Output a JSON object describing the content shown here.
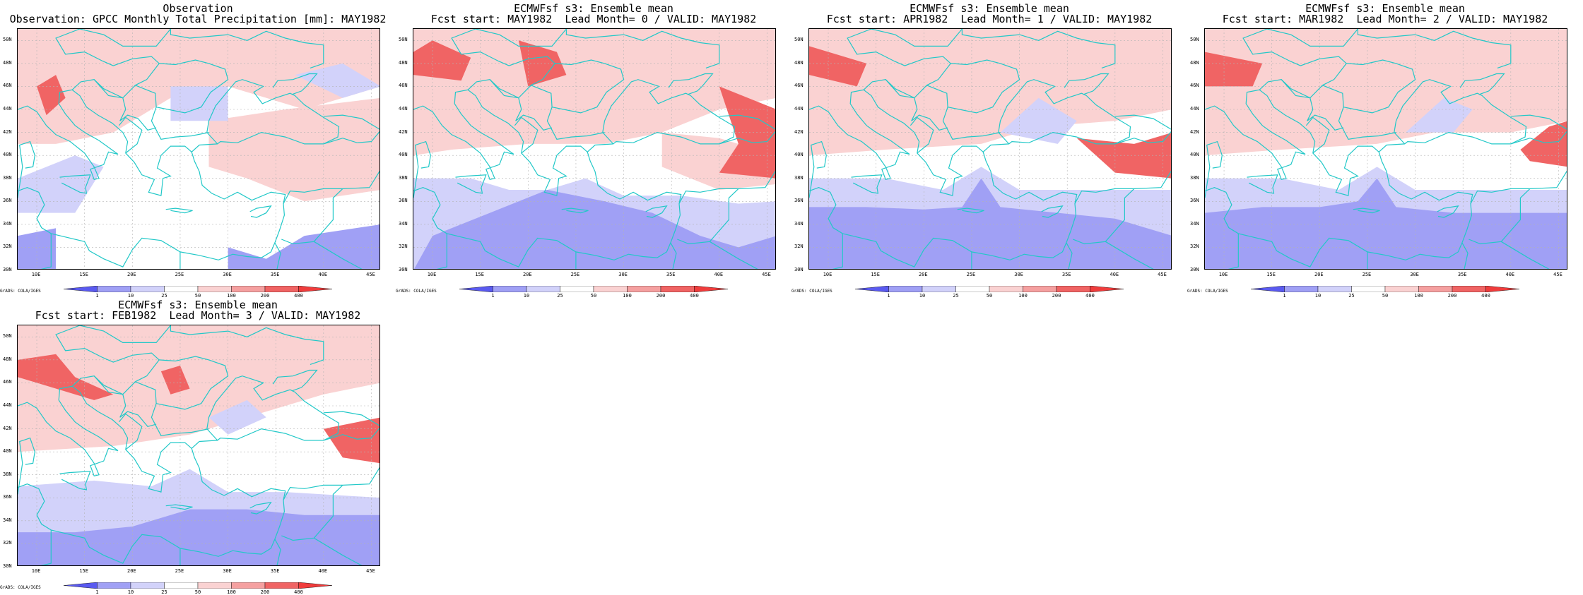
{
  "panels": [
    {
      "title1": "Observation",
      "title2": "Observation: GPCC Monthly Total Precipitation [mm]: MAY1982",
      "variant": 0
    },
    {
      "title1": "ECMWFsf s3: Ensemble mean",
      "title2": "Fcst start: MAY1982  Lead Month= 0 / VALID: MAY1982",
      "variant": 1
    },
    {
      "title1": "ECMWFsf s3: Ensemble mean",
      "title2": "Fcst start: APR1982  Lead Month= 1 / VALID: MAY1982",
      "variant": 2
    },
    {
      "title1": "ECMWFsf s3: Ensemble mean",
      "title2": "Fcst start: MAR1982  Lead Month= 2 / VALID: MAY1982",
      "variant": 3
    },
    {
      "title1": "ECMWFsf s3: Ensemble mean",
      "title2": "Fcst start: FEB1982  Lead Month= 3 / VALID: MAY1982",
      "variant": 4
    }
  ],
  "map": {
    "lat_labels": [
      "50N",
      "48N",
      "46N",
      "44N",
      "42N",
      "40N",
      "38N",
      "36N",
      "34N",
      "32N",
      "30N"
    ],
    "lon_labels": [
      "10E",
      "15E",
      "20E",
      "25E",
      "30E",
      "35E",
      "40E",
      "45E"
    ],
    "lat_range": [
      30,
      51
    ],
    "lon_range": [
      8,
      46
    ]
  },
  "colorbar": {
    "labels": [
      "1",
      "10",
      "25",
      "50",
      "100",
      "200",
      "400"
    ],
    "colors": [
      "#5a5af0",
      "#a0a0f5",
      "#d2d2fa",
      "#ffffff",
      "#fad2d2",
      "#f5a0a0",
      "#f06464",
      "#f03c3c"
    ]
  },
  "credit": "GrADS: COLA/IGES",
  "colors": {
    "coast": "#22c8c8",
    "grid": "#b4b4b4",
    "frame": "#000000"
  }
}
